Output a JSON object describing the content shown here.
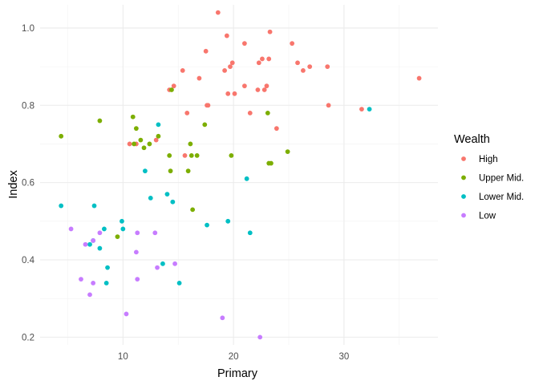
{
  "chart_data": {
    "type": "scatter",
    "xlabel": "Primary",
    "ylabel": "Index",
    "xlim": [
      2.5,
      38.5
    ],
    "ylim": [
      0.18,
      1.06
    ],
    "x_major_ticks": [
      10,
      20,
      30
    ],
    "x_minor_ticks": [
      5,
      15,
      25,
      35
    ],
    "y_major_ticks": [
      0.2,
      0.4,
      0.6,
      0.8,
      1.0
    ],
    "y_tick_labels": [
      "0.2",
      "0.4",
      "0.6",
      "0.8",
      "1.0"
    ],
    "y_minor_ticks": [
      0.3,
      0.5,
      0.7,
      0.9
    ],
    "grid": true,
    "legend": {
      "title": "Wealth",
      "position": "right"
    },
    "series": [
      {
        "name": "High",
        "color": "#F8766D",
        "points": [
          [
            18.6,
            1.04
          ],
          [
            23.3,
            0.99
          ],
          [
            19.4,
            0.98
          ],
          [
            21.0,
            0.96
          ],
          [
            25.3,
            0.96
          ],
          [
            17.5,
            0.94
          ],
          [
            22.6,
            0.92
          ],
          [
            23.2,
            0.92
          ],
          [
            25.8,
            0.91
          ],
          [
            22.3,
            0.91
          ],
          [
            19.9,
            0.91
          ],
          [
            19.7,
            0.9
          ],
          [
            28.5,
            0.9
          ],
          [
            26.9,
            0.9
          ],
          [
            19.2,
            0.89
          ],
          [
            26.3,
            0.89
          ],
          [
            15.4,
            0.89
          ],
          [
            16.9,
            0.87
          ],
          [
            36.8,
            0.87
          ],
          [
            14.6,
            0.85
          ],
          [
            21.0,
            0.85
          ],
          [
            23.0,
            0.85
          ],
          [
            14.2,
            0.84
          ],
          [
            22.2,
            0.84
          ],
          [
            22.8,
            0.84
          ],
          [
            19.5,
            0.83
          ],
          [
            20.1,
            0.83
          ],
          [
            17.6,
            0.8
          ],
          [
            17.7,
            0.8
          ],
          [
            28.6,
            0.8
          ],
          [
            31.6,
            0.79
          ],
          [
            21.5,
            0.78
          ],
          [
            15.8,
            0.78
          ],
          [
            23.9,
            0.74
          ],
          [
            13.0,
            0.71
          ],
          [
            11.2,
            0.7
          ],
          [
            10.6,
            0.7
          ],
          [
            15.6,
            0.67
          ]
        ]
      },
      {
        "name": "Upper Mid.",
        "color": "#7CAE00",
        "points": [
          [
            14.4,
            0.84
          ],
          [
            23.1,
            0.78
          ],
          [
            10.9,
            0.77
          ],
          [
            7.9,
            0.76
          ],
          [
            17.4,
            0.75
          ],
          [
            11.2,
            0.74
          ],
          [
            4.4,
            0.72
          ],
          [
            13.2,
            0.72
          ],
          [
            11.6,
            0.71
          ],
          [
            11.0,
            0.7
          ],
          [
            12.4,
            0.7
          ],
          [
            16.1,
            0.7
          ],
          [
            11.9,
            0.69
          ],
          [
            24.9,
            0.68
          ],
          [
            14.2,
            0.67
          ],
          [
            16.2,
            0.67
          ],
          [
            16.7,
            0.67
          ],
          [
            19.8,
            0.67
          ],
          [
            23.2,
            0.65
          ],
          [
            23.4,
            0.65
          ],
          [
            14.3,
            0.63
          ],
          [
            15.9,
            0.63
          ],
          [
            16.3,
            0.53
          ],
          [
            9.5,
            0.46
          ]
        ]
      },
      {
        "name": "Lower Mid.",
        "color": "#00BFC4",
        "points": [
          [
            32.3,
            0.79
          ],
          [
            13.2,
            0.75
          ],
          [
            12.0,
            0.63
          ],
          [
            21.2,
            0.61
          ],
          [
            14.0,
            0.57
          ],
          [
            12.5,
            0.56
          ],
          [
            14.5,
            0.55
          ],
          [
            4.4,
            0.54
          ],
          [
            7.4,
            0.54
          ],
          [
            19.5,
            0.5
          ],
          [
            9.9,
            0.5
          ],
          [
            17.6,
            0.49
          ],
          [
            8.3,
            0.48
          ],
          [
            10.0,
            0.48
          ],
          [
            21.5,
            0.47
          ],
          [
            7.3,
            0.45
          ],
          [
            7.0,
            0.44
          ],
          [
            7.9,
            0.43
          ],
          [
            13.6,
            0.39
          ],
          [
            8.6,
            0.38
          ],
          [
            8.5,
            0.34
          ],
          [
            15.1,
            0.34
          ]
        ]
      },
      {
        "name": "Low",
        "color": "#C77CFF",
        "points": [
          [
            5.3,
            0.48
          ],
          [
            7.9,
            0.47
          ],
          [
            11.3,
            0.47
          ],
          [
            12.9,
            0.47
          ],
          [
            7.3,
            0.45
          ],
          [
            6.6,
            0.44
          ],
          [
            11.2,
            0.42
          ],
          [
            14.7,
            0.39
          ],
          [
            13.1,
            0.38
          ],
          [
            6.2,
            0.35
          ],
          [
            11.3,
            0.35
          ],
          [
            7.3,
            0.34
          ],
          [
            7.0,
            0.31
          ],
          [
            10.3,
            0.26
          ],
          [
            19.0,
            0.25
          ],
          [
            22.4,
            0.2
          ]
        ]
      }
    ]
  }
}
